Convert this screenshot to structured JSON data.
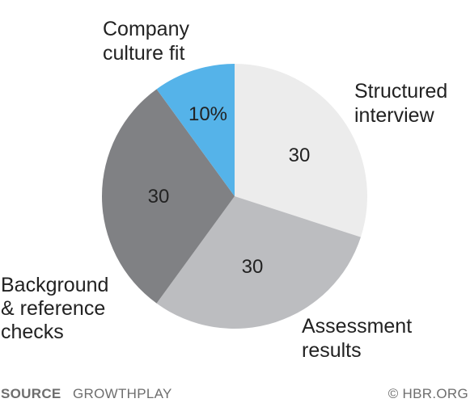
{
  "chart_data": {
    "type": "pie",
    "title": "",
    "slices": [
      {
        "label": "Structured interview",
        "label_lines": [
          "Structured",
          "interview"
        ],
        "value": 30,
        "value_label": "30",
        "color": "#ececec"
      },
      {
        "label": "Assessment results",
        "label_lines": [
          "Assessment",
          "results"
        ],
        "value": 30,
        "value_label": "30",
        "color": "#bcbdc0"
      },
      {
        "label": "Background & reference checks",
        "label_lines": [
          "Background",
          "& reference",
          "checks"
        ],
        "value": 30,
        "value_label": "30",
        "color": "#808184"
      },
      {
        "label": "Company culture fit",
        "label_lines": [
          "Company",
          "culture fit"
        ],
        "value": 10,
        "value_label": "10%",
        "color": "#55b3e9"
      }
    ],
    "start_angle_deg": 0,
    "direction": "clockwise"
  },
  "footer": {
    "source_key": "SOURCE",
    "source_value": "GROWTHPLAY",
    "copyright": "© HBR.ORG"
  }
}
